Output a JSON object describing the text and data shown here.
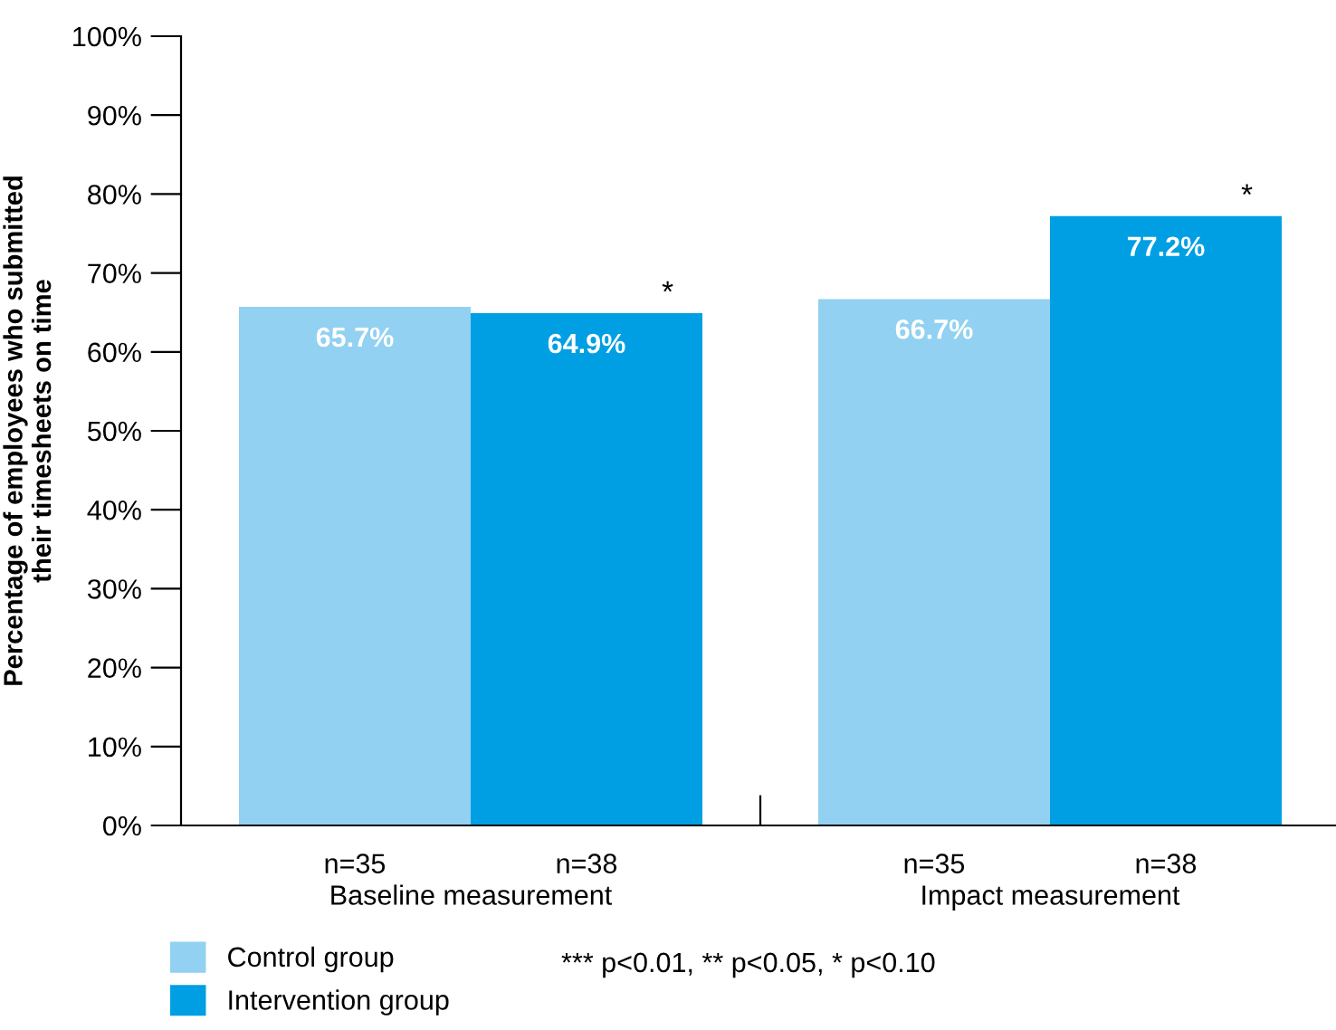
{
  "chart_data": {
    "type": "bar",
    "ylabel": "Percentage of employees who submitted\ntheir timesheets on time",
    "categories": [
      "Baseline measurement",
      "Impact measurement"
    ],
    "series": [
      {
        "name": "Control group",
        "color": "#92d1f1",
        "values": [
          65.7,
          66.7
        ],
        "value_labels": [
          "65.7%",
          "66.7%"
        ]
      },
      {
        "name": "Intervention group",
        "color": "#009fe3",
        "values": [
          64.9,
          77.2
        ],
        "value_labels": [
          "64.9%",
          "77.2%"
        ]
      }
    ],
    "ylim": [
      0,
      100
    ],
    "yticks": [
      {
        "value": 0,
        "label": "0%"
      },
      {
        "value": 10,
        "label": "10%"
      },
      {
        "value": 20,
        "label": "20%"
      },
      {
        "value": 30,
        "label": "30%"
      },
      {
        "value": 40,
        "label": "40%"
      },
      {
        "value": 50,
        "label": "50%"
      },
      {
        "value": 60,
        "label": "60%"
      },
      {
        "value": 70,
        "label": "70%"
      },
      {
        "value": 80,
        "label": "80%"
      },
      {
        "value": 90,
        "label": "90%"
      },
      {
        "value": 100,
        "label": "100%"
      }
    ],
    "annotations": [
      "n=35",
      "n=38",
      "n=35",
      "n=38",
      "*",
      "*",
      "*** p<0.01, ** p<0.05, * p<0.10"
    ],
    "grid": false,
    "legend": "bottom"
  }
}
